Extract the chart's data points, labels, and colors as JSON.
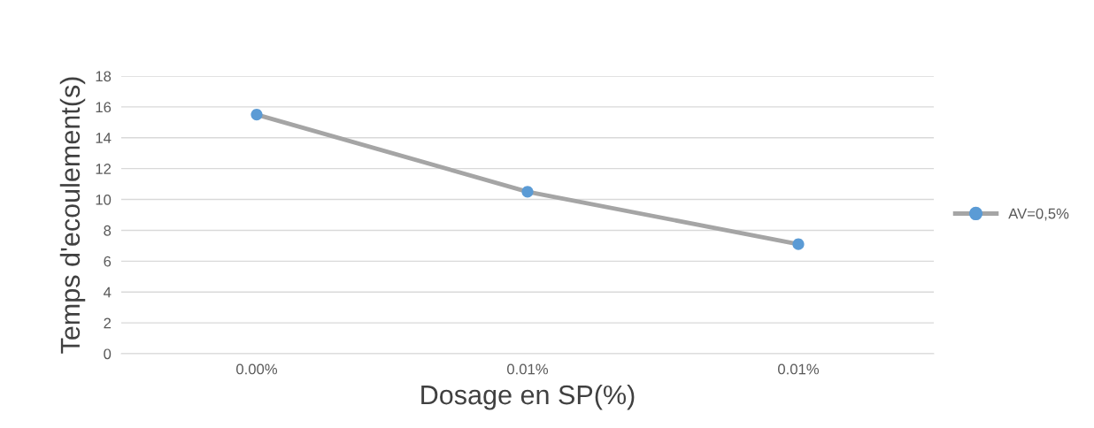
{
  "chart_data": {
    "type": "line",
    "xlabel": "Dosage en SP(%)",
    "ylabel": "Temps d'ecoulement(s)",
    "categories": [
      "0.00%",
      "0.01%",
      "0.01%"
    ],
    "series": [
      {
        "name": "AV=0,5%",
        "color": "#a5a5a5",
        "colors": [
          "#5b9bd5",
          "#5b9bd5",
          "#5b9bd5"
        ],
        "values": [
          15.5,
          10.5,
          7.1
        ]
      }
    ],
    "ylim": [
      0,
      18
    ],
    "yticks": [
      0,
      2,
      4,
      6,
      8,
      10,
      12,
      14,
      16,
      18
    ],
    "grid": "y",
    "legend": "right",
    "marker": "circle",
    "line_style": "solid"
  }
}
